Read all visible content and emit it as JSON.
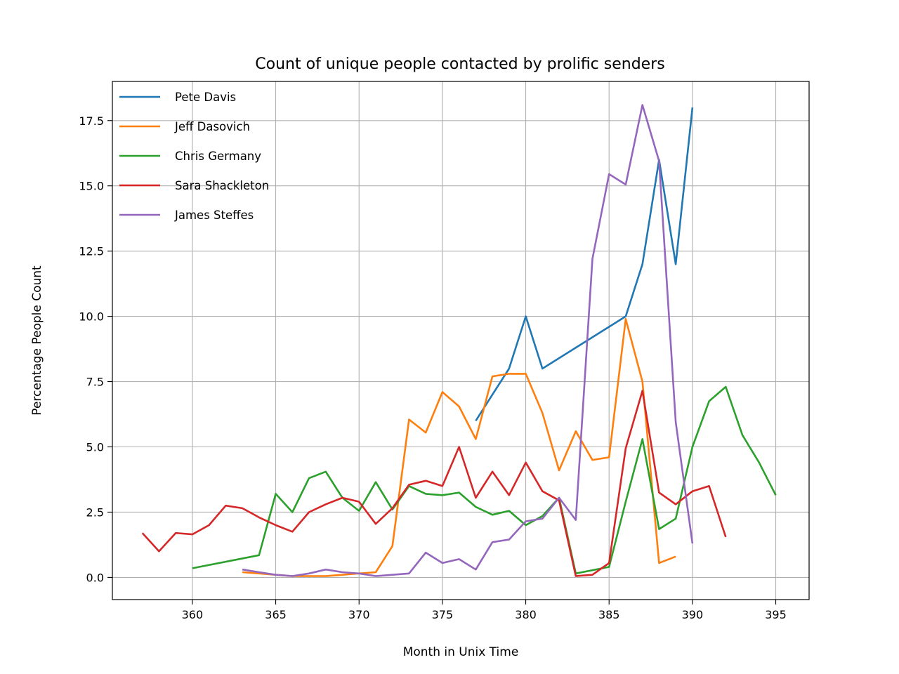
{
  "chart_data": {
    "type": "line",
    "title": "Count of unique people contacted by prolific senders",
    "xlabel": "Month in Unix Time",
    "ylabel": "Percentage People Count",
    "xlim": [
      355.2,
      397.0
    ],
    "ylim": [
      -0.85,
      19.0
    ],
    "xticks": [
      360,
      365,
      370,
      375,
      380,
      385,
      390,
      395
    ],
    "xtick_labels": [
      "360",
      "365",
      "370",
      "375",
      "380",
      "385",
      "390",
      "395"
    ],
    "yticks": [
      0.0,
      2.5,
      5.0,
      7.5,
      10.0,
      12.5,
      15.0,
      17.5
    ],
    "ytick_labels": [
      "0.0",
      "2.5",
      "5.0",
      "7.5",
      "10.0",
      "12.5",
      "15.0",
      "17.5"
    ],
    "grid": true,
    "legend_position": "top-left",
    "series": [
      {
        "name": "Pete Davis",
        "color": "#1f77b4",
        "x": [
          377,
          378,
          379,
          380,
          381,
          386,
          387,
          388,
          389,
          390
        ],
        "y": [
          6.0,
          7.0,
          8.0,
          10.0,
          8.0,
          10.0,
          12.0,
          16.0,
          12.0,
          18.0
        ]
      },
      {
        "name": "Jeff Dasovich",
        "color": "#ff7f0e",
        "x": [
          363,
          364,
          365,
          366,
          367,
          368,
          369,
          370,
          371,
          372,
          373,
          374,
          375,
          376,
          377,
          378,
          379,
          380,
          381,
          382,
          383,
          384,
          385,
          386,
          387,
          388,
          389
        ],
        "y": [
          0.2,
          0.15,
          0.1,
          0.05,
          0.05,
          0.05,
          0.1,
          0.15,
          0.2,
          1.2,
          6.05,
          5.55,
          7.1,
          6.55,
          5.3,
          7.7,
          7.8,
          7.8,
          6.3,
          4.1,
          5.6,
          4.5,
          4.6,
          9.9,
          7.5,
          0.55,
          0.8
        ]
      },
      {
        "name": "Chris Germany",
        "color": "#2ca02c",
        "x": [
          360,
          364,
          365,
          366,
          367,
          368,
          369,
          370,
          371,
          372,
          373,
          374,
          375,
          376,
          377,
          378,
          379,
          380,
          381,
          382,
          383,
          385,
          386,
          387,
          388,
          389,
          390,
          391,
          392,
          393,
          394,
          395
        ],
        "y": [
          0.35,
          0.85,
          3.2,
          2.5,
          3.8,
          4.05,
          3.05,
          2.55,
          3.65,
          2.6,
          3.5,
          3.2,
          3.15,
          3.25,
          2.7,
          2.4,
          2.55,
          2.0,
          2.35,
          3.05,
          0.15,
          0.4,
          2.9,
          5.3,
          1.85,
          2.25,
          5.0,
          6.75,
          7.3,
          5.45,
          4.4,
          3.15
        ]
      },
      {
        "name": "Sara Shackleton",
        "color": "#d62728",
        "x": [
          357,
          358,
          359,
          360,
          361,
          362,
          363,
          364,
          365,
          366,
          367,
          368,
          369,
          370,
          371,
          372,
          373,
          374,
          375,
          376,
          377,
          378,
          379,
          380,
          381,
          382,
          383,
          384,
          385,
          386,
          387,
          388,
          389,
          390,
          391,
          392
        ],
        "y": [
          1.7,
          1.0,
          1.7,
          1.65,
          2.0,
          2.75,
          2.65,
          2.3,
          2.0,
          1.75,
          2.5,
          2.8,
          3.05,
          2.9,
          2.05,
          2.65,
          3.55,
          3.7,
          3.5,
          5.0,
          3.05,
          4.05,
          3.15,
          4.4,
          3.3,
          2.95,
          0.05,
          0.1,
          0.55,
          4.95,
          7.15,
          3.25,
          2.8,
          3.3,
          3.5,
          1.55
        ]
      },
      {
        "name": "James Steffes",
        "color": "#9467bd",
        "x": [
          363,
          364,
          365,
          366,
          367,
          368,
          369,
          370,
          371,
          372,
          373,
          374,
          375,
          376,
          377,
          378,
          379,
          380,
          381,
          382,
          383,
          384,
          385,
          386,
          387,
          388,
          389,
          390
        ],
        "y": [
          0.3,
          0.2,
          0.1,
          0.05,
          0.15,
          0.3,
          0.2,
          0.15,
          0.05,
          0.1,
          0.15,
          0.95,
          0.55,
          0.7,
          0.3,
          1.35,
          1.45,
          2.15,
          2.25,
          3.05,
          2.2,
          12.2,
          15.45,
          15.05,
          18.1,
          15.95,
          5.95,
          1.3
        ]
      }
    ]
  }
}
